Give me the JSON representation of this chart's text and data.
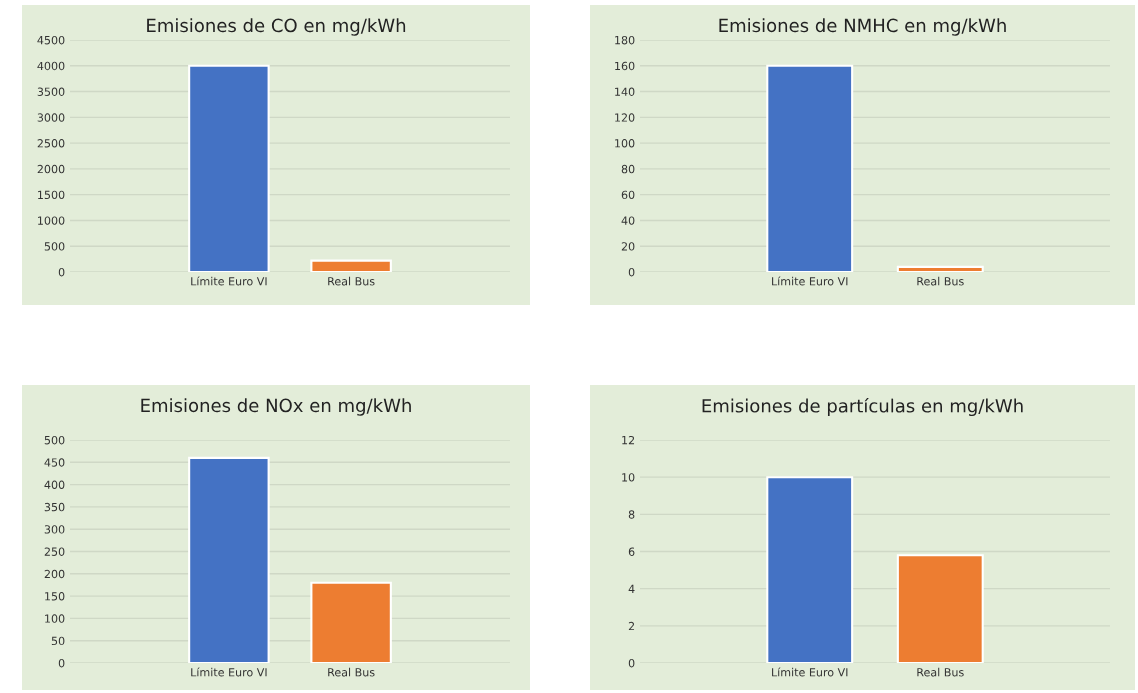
{
  "chart_data": [
    {
      "type": "bar",
      "title": "Emisiones de CO en mg/kWh",
      "categories": [
        "Límite Euro VI",
        "Real Bus"
      ],
      "values": [
        4000,
        220
      ],
      "colors": [
        "#4472c4",
        "#ed7d31"
      ],
      "ylim": [
        0,
        4500
      ],
      "yticks": [
        0,
        500,
        1000,
        1500,
        2000,
        2500,
        3000,
        3500,
        4000,
        4500
      ],
      "grid": "y",
      "legend": false
    },
    {
      "type": "bar",
      "title": "Emisiones de NMHC en mg/kWh",
      "categories": [
        "Límite Euro VI",
        "Real Bus"
      ],
      "values": [
        160,
        4
      ],
      "colors": [
        "#4472c4",
        "#ed7d31"
      ],
      "ylim": [
        0,
        180
      ],
      "yticks": [
        0,
        20,
        40,
        60,
        80,
        100,
        120,
        140,
        160,
        180
      ],
      "grid": "y",
      "legend": false
    },
    {
      "type": "bar",
      "title": "Emisiones de NOx en mg/kWh",
      "categories": [
        "Límite Euro VI",
        "Real Bus"
      ],
      "values": [
        460,
        180
      ],
      "colors": [
        "#4472c4",
        "#ed7d31"
      ],
      "ylim": [
        0,
        500
      ],
      "yticks": [
        0,
        50,
        100,
        150,
        200,
        250,
        300,
        350,
        400,
        450,
        500
      ],
      "grid": "y",
      "legend": false
    },
    {
      "type": "bar",
      "title": "Emisiones de partículas en mg/kWh",
      "categories": [
        "Límite Euro VI",
        "Real Bus"
      ],
      "values": [
        10,
        5.8
      ],
      "colors": [
        "#4472c4",
        "#ed7d31"
      ],
      "ylim": [
        0,
        12
      ],
      "yticks": [
        0,
        2,
        4,
        6,
        8,
        10,
        12
      ],
      "grid": "y",
      "legend": false
    }
  ]
}
